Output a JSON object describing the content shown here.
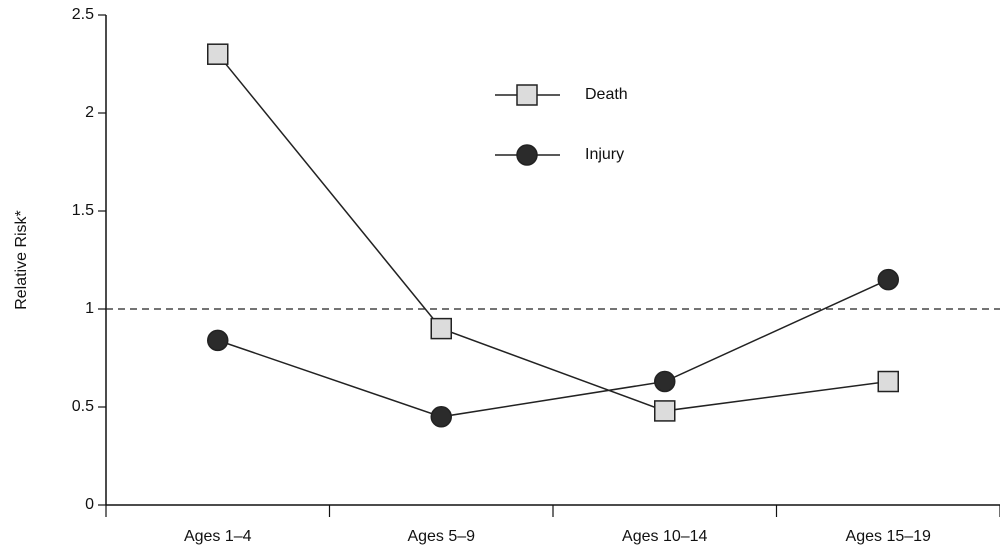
{
  "chart_data": {
    "type": "line",
    "ylabel": "Relative Risk*",
    "categories": [
      "Ages 1–4",
      "Ages 5–9",
      "Ages 10–14",
      "Ages 15–19"
    ],
    "series": [
      {
        "name": "Death",
        "color": "#dcdcdc",
        "marker": "square",
        "values": [
          2.3,
          0.9,
          0.48,
          0.63
        ]
      },
      {
        "name": "Injury",
        "color": "#2b2b2b",
        "marker": "circle",
        "values": [
          0.84,
          0.45,
          0.63,
          1.15
        ]
      }
    ],
    "ylim": [
      0,
      2.5
    ],
    "yticks": [
      0,
      0.5,
      1,
      1.5,
      2,
      2.5
    ],
    "reference_line": 1
  }
}
